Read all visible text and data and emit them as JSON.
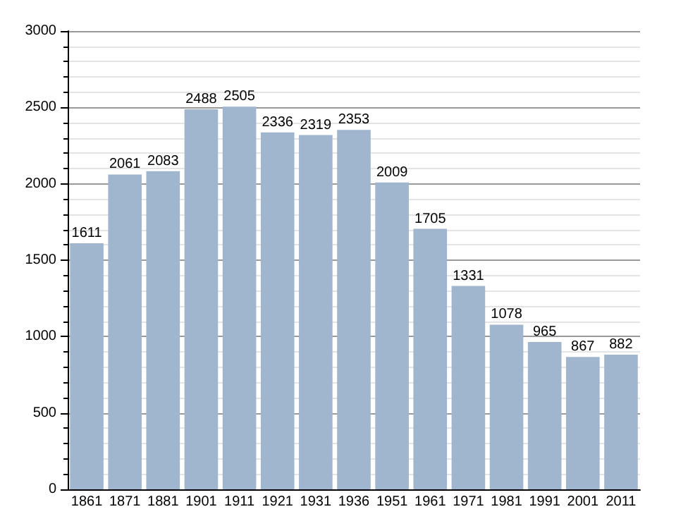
{
  "chart_data": {
    "type": "bar",
    "categories": [
      "1861",
      "1871",
      "1881",
      "1901",
      "1911",
      "1921",
      "1931",
      "1936",
      "1951",
      "1961",
      "1971",
      "1981",
      "1991",
      "2001",
      "2011"
    ],
    "values": [
      1611,
      2061,
      2083,
      2488,
      2505,
      2336,
      2319,
      2353,
      2009,
      1705,
      1331,
      1078,
      965,
      867,
      882
    ],
    "color": "#a0b6cf",
    "ylim": [
      0,
      3000
    ],
    "yticks": [
      0,
      500,
      1000,
      1500,
      2000,
      2500,
      3000
    ],
    "grid": "y",
    "data_labels": true
  }
}
